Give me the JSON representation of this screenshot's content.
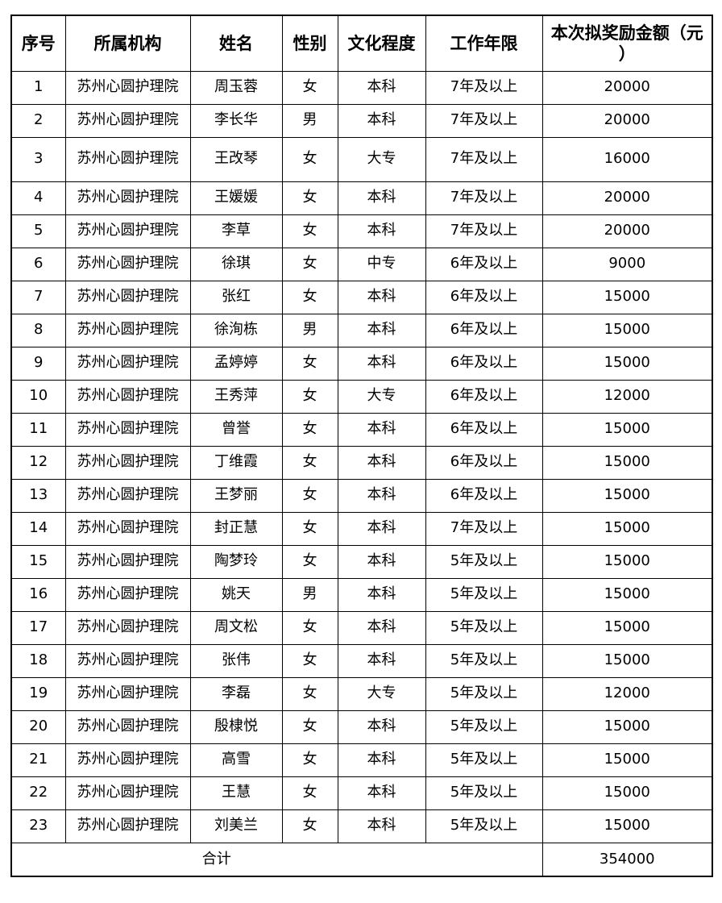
{
  "colors": {
    "background": "#ffffff",
    "border": "#000000",
    "text": "#000000"
  },
  "table": {
    "columns": [
      {
        "key": "no",
        "label": "序号"
      },
      {
        "key": "org",
        "label": "所属机构"
      },
      {
        "key": "name",
        "label": "姓名"
      },
      {
        "key": "gender",
        "label": "性别"
      },
      {
        "key": "education",
        "label": "文化程度"
      },
      {
        "key": "years",
        "label": "工作年限"
      },
      {
        "key": "amount",
        "label": "本次拟奖励金额（元）"
      }
    ],
    "rows": [
      {
        "no": "1",
        "org": "苏州心圆护理院",
        "name": "周玉蓉",
        "gender": "女",
        "education": "本科",
        "years": "7年及以上",
        "amount": "20000"
      },
      {
        "no": "2",
        "org": "苏州心圆护理院",
        "name": "李长华",
        "gender": "男",
        "education": "本科",
        "years": "7年及以上",
        "amount": "20000"
      },
      {
        "no": "3",
        "org": "苏州心圆护理院",
        "name": "王改琴",
        "gender": "女",
        "education": "大专",
        "years": "7年及以上",
        "amount": "16000"
      },
      {
        "no": "4",
        "org": "苏州心圆护理院",
        "name": "王媛媛",
        "gender": "女",
        "education": "本科",
        "years": "7年及以上",
        "amount": "20000"
      },
      {
        "no": "5",
        "org": "苏州心圆护理院",
        "name": "李草",
        "gender": "女",
        "education": "本科",
        "years": "7年及以上",
        "amount": "20000"
      },
      {
        "no": "6",
        "org": "苏州心圆护理院",
        "name": "徐琪",
        "gender": "女",
        "education": "中专",
        "years": "6年及以上",
        "amount": "9000"
      },
      {
        "no": "7",
        "org": "苏州心圆护理院",
        "name": "张红",
        "gender": "女",
        "education": "本科",
        "years": "6年及以上",
        "amount": "15000"
      },
      {
        "no": "8",
        "org": "苏州心圆护理院",
        "name": "徐洵栋",
        "gender": "男",
        "education": "本科",
        "years": "6年及以上",
        "amount": "15000"
      },
      {
        "no": "9",
        "org": "苏州心圆护理院",
        "name": "孟婷婷",
        "gender": "女",
        "education": "本科",
        "years": "6年及以上",
        "amount": "15000"
      },
      {
        "no": "10",
        "org": "苏州心圆护理院",
        "name": "王秀萍",
        "gender": "女",
        "education": "大专",
        "years": "6年及以上",
        "amount": "12000"
      },
      {
        "no": "11",
        "org": "苏州心圆护理院",
        "name": "曾誉",
        "gender": "女",
        "education": "本科",
        "years": "6年及以上",
        "amount": "15000"
      },
      {
        "no": "12",
        "org": "苏州心圆护理院",
        "name": "丁维霞",
        "gender": "女",
        "education": "本科",
        "years": "6年及以上",
        "amount": "15000"
      },
      {
        "no": "13",
        "org": "苏州心圆护理院",
        "name": "王梦丽",
        "gender": "女",
        "education": "本科",
        "years": "6年及以上",
        "amount": "15000"
      },
      {
        "no": "14",
        "org": "苏州心圆护理院",
        "name": "封正慧",
        "gender": "女",
        "education": "本科",
        "years": "7年及以上",
        "amount": "15000"
      },
      {
        "no": "15",
        "org": "苏州心圆护理院",
        "name": "陶梦玲",
        "gender": "女",
        "education": "本科",
        "years": "5年及以上",
        "amount": "15000"
      },
      {
        "no": "16",
        "org": "苏州心圆护理院",
        "name": "姚天",
        "gender": "男",
        "education": "本科",
        "years": "5年及以上",
        "amount": "15000"
      },
      {
        "no": "17",
        "org": "苏州心圆护理院",
        "name": "周文松",
        "gender": "女",
        "education": "本科",
        "years": "5年及以上",
        "amount": "15000"
      },
      {
        "no": "18",
        "org": "苏州心圆护理院",
        "name": "张伟",
        "gender": "女",
        "education": "本科",
        "years": "5年及以上",
        "amount": "15000"
      },
      {
        "no": "19",
        "org": "苏州心圆护理院",
        "name": "李磊",
        "gender": "女",
        "education": "大专",
        "years": "5年及以上",
        "amount": "12000"
      },
      {
        "no": "20",
        "org": "苏州心圆护理院",
        "name": "殷棣悦",
        "gender": "女",
        "education": "本科",
        "years": "5年及以上",
        "amount": "15000"
      },
      {
        "no": "21",
        "org": "苏州心圆护理院",
        "name": "高雪",
        "gender": "女",
        "education": "本科",
        "years": "5年及以上",
        "amount": "15000"
      },
      {
        "no": "22",
        "org": "苏州心圆护理院",
        "name": "王慧",
        "gender": "女",
        "education": "本科",
        "years": "5年及以上",
        "amount": "15000"
      },
      {
        "no": "23",
        "org": "苏州心圆护理院",
        "name": "刘美兰",
        "gender": "女",
        "education": "本科",
        "years": "5年及以上",
        "amount": "15000"
      }
    ],
    "footer": {
      "label": "合计",
      "total": "354000"
    }
  }
}
